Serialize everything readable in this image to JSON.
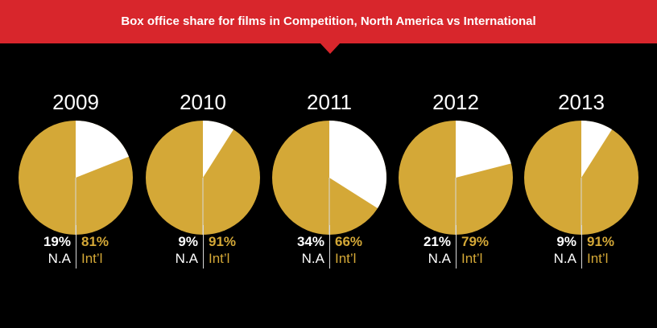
{
  "header": {
    "title": "Box office share for films in Competition, North America vs International"
  },
  "colors": {
    "banner": "#d8262c",
    "background": "#000000",
    "international": "#d4a837",
    "north_america": "#ffffff"
  },
  "chart_data": {
    "type": "pie",
    "title": "Box office share for films in Competition, North America vs International",
    "series_labels": {
      "na": "N.A",
      "intl": "Int’l"
    },
    "years": [
      {
        "year": "2009",
        "na": 19,
        "intl": 81,
        "na_text": "19%",
        "intl_text": "81%"
      },
      {
        "year": "2010",
        "na": 9,
        "intl": 91,
        "na_text": "9%",
        "intl_text": "91%"
      },
      {
        "year": "2011",
        "na": 34,
        "intl": 66,
        "na_text": "34%",
        "intl_text": "66%"
      },
      {
        "year": "2012",
        "na": 21,
        "intl": 79,
        "na_text": "21%",
        "intl_text": "79%"
      },
      {
        "year": "2013",
        "na": 9,
        "intl": 91,
        "na_text": "9%",
        "intl_text": "91%"
      }
    ]
  }
}
